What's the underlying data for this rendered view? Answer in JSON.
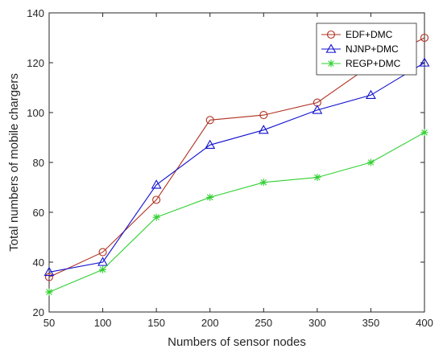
{
  "chart_data": {
    "type": "line",
    "title": "",
    "xlabel": "Numbers of sensor nodes",
    "ylabel": "Total numbers of mobile chargers",
    "x": [
      50,
      100,
      150,
      200,
      250,
      300,
      350,
      400
    ],
    "xlim": [
      50,
      400
    ],
    "ylim": [
      20,
      140
    ],
    "xticks": [
      50,
      100,
      150,
      200,
      250,
      300,
      350,
      400
    ],
    "yticks": [
      20,
      40,
      60,
      80,
      100,
      120,
      140
    ],
    "grid": false,
    "legend_position": "top-right",
    "series": [
      {
        "name": "EDF+DMC",
        "color": "#b03020",
        "marker": "circle",
        "values": [
          34,
          44,
          65,
          97,
          99,
          104,
          119,
          130
        ]
      },
      {
        "name": "NJNP+DMC",
        "color": "#1010d0",
        "marker": "triangle",
        "values": [
          36,
          40,
          71,
          87,
          93,
          101,
          107,
          120
        ]
      },
      {
        "name": "REGP+DMC",
        "color": "#30d030",
        "marker": "asterisk",
        "values": [
          28,
          37,
          58,
          66,
          72,
          74,
          80,
          92
        ]
      }
    ]
  }
}
